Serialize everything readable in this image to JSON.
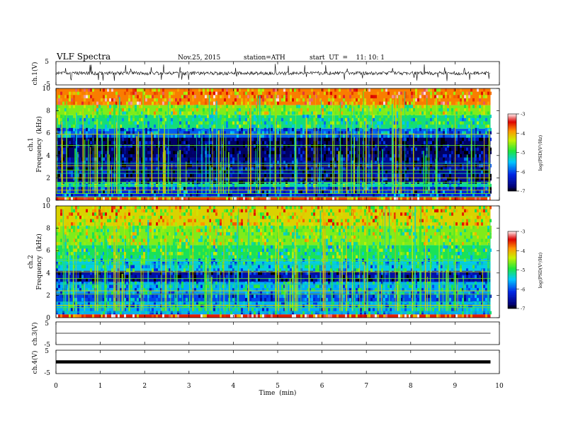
{
  "header": {
    "title": "VLF  Spectra",
    "date": "Nov.25, 2015",
    "station": "station=ATH",
    "start": "start  UT  =    11: 10: 1"
  },
  "chart_data": [
    {
      "type": "line",
      "panel": "ch1-waveform",
      "ylabel": "ch.1(V)",
      "ylim": [
        -5,
        5
      ],
      "yticks": [
        "5",
        "-5"
      ],
      "x_range_min": [
        0,
        9.8
      ],
      "trace_level_v": 0.0,
      "color": "#000000"
    },
    {
      "type": "heatmap",
      "panel": "ch1-spectrogram",
      "ylabel_line1": "ch.1",
      "ylabel_line2": "Frequency  (kHz)",
      "ylim": [
        0,
        10
      ],
      "yticks": [
        "0",
        "2",
        "4",
        "6",
        "8",
        "10"
      ],
      "x_range_min": [
        0,
        9.8
      ],
      "bands_khz": [
        [
          0,
          0.35,
          -3.6
        ],
        [
          0.35,
          1.2,
          -6.2
        ],
        [
          1.2,
          1.6,
          -5.2
        ],
        [
          1.6,
          3.8,
          -6.6
        ],
        [
          3.8,
          5.6,
          -6.8
        ],
        [
          5.6,
          6.4,
          -5.9
        ],
        [
          6.4,
          7.6,
          -5.1
        ],
        [
          7.6,
          8.5,
          -4.6
        ],
        [
          8.5,
          10,
          -3.8
        ]
      ],
      "harmonic_lines_khz": [
        0.3,
        0.6,
        0.9,
        1.3,
        1.6,
        2.0,
        2.4,
        2.7,
        3.1,
        3.3,
        4.9,
        5.9
      ],
      "colorbar": {
        "label": "log(PSD(V²/Hz)",
        "range": [
          -7,
          -3
        ],
        "ticks": [
          "-3",
          "-4",
          "-5",
          "-6",
          "-7"
        ]
      }
    },
    {
      "type": "heatmap",
      "panel": "ch2-spectrogram",
      "ylabel_line1": "ch.2",
      "ylabel_line2": "Frequency  (kHz)",
      "ylim": [
        0,
        10
      ],
      "yticks": [
        "0",
        "2",
        "4",
        "6",
        "8",
        "10"
      ],
      "x_range_min": [
        0,
        9.8
      ],
      "bands_khz": [
        [
          0,
          0.3,
          -3.5
        ],
        [
          0.3,
          1.4,
          -5.6
        ],
        [
          1.4,
          2.2,
          -6.0
        ],
        [
          2.2,
          3.2,
          -5.6
        ],
        [
          3.2,
          4.2,
          -6.5
        ],
        [
          4.2,
          5.2,
          -5.4
        ],
        [
          5.2,
          6.5,
          -5.0
        ],
        [
          6.5,
          8.2,
          -4.6
        ],
        [
          8.2,
          10,
          -4.2
        ]
      ],
      "harmonic_lines_khz": [
        0.5,
        0.9,
        1.1,
        1.4,
        2.1,
        2.4,
        3.0,
        3.5,
        4.1,
        4.8,
        5.1
      ],
      "colorbar": {
        "label": "log(PSD(V²/Hz)",
        "range": [
          -7,
          -3
        ],
        "ticks": [
          "-3",
          "-4",
          "-5",
          "-6",
          "-7"
        ]
      }
    },
    {
      "type": "line",
      "panel": "ch3-waveform",
      "ylabel": "ch.3(V)",
      "ylim": [
        -5,
        5
      ],
      "yticks": [
        "5",
        "-5"
      ],
      "x_range_min": [
        0,
        9.8
      ],
      "trace_level_v": 0.0,
      "color": "#000000"
    },
    {
      "type": "line",
      "panel": "ch4-waveform",
      "ylabel": "ch.4(V)",
      "ylim": [
        -5,
        5
      ],
      "yticks": [
        "5",
        "-5"
      ],
      "x_range_min": [
        0,
        9.8
      ],
      "trace_level_v": 0.0,
      "color": "#000000"
    }
  ],
  "x_axis": {
    "label": "Time  (min)",
    "range": [
      0,
      10
    ],
    "ticks": [
      "0",
      "1",
      "2",
      "3",
      "4",
      "5",
      "6",
      "7",
      "8",
      "9",
      "10"
    ]
  }
}
